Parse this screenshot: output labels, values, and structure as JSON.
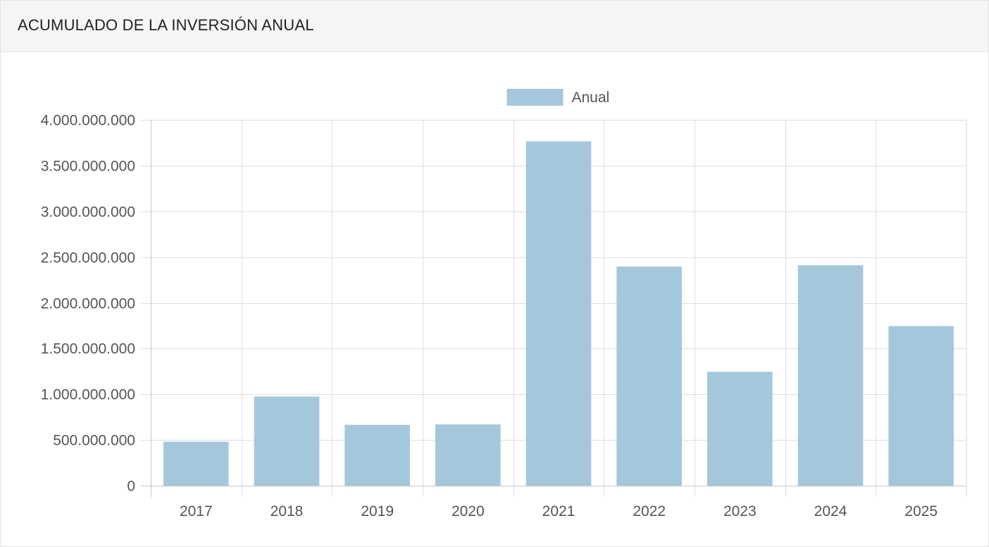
{
  "panel": {
    "title": "ACUMULADO DE LA INVERSIÓN ANUAL"
  },
  "colors": {
    "bar": "#a4c7dc",
    "grid": "#dedede",
    "axis": "#c8c8c8",
    "header_bg": "#f5f5f5"
  },
  "chart_data": {
    "type": "bar",
    "title": "ACUMULADO DE LA INVERSIÓN ANUAL",
    "xlabel": "",
    "ylabel": "",
    "legend": "top-center",
    "grid": true,
    "categories": [
      "2017",
      "2018",
      "2019",
      "2020",
      "2021",
      "2022",
      "2023",
      "2024",
      "2025"
    ],
    "series": [
      {
        "name": "Anual",
        "values": [
          480000000,
          975000000,
          665000000,
          670000000,
          3765000000,
          2395000000,
          1245000000,
          2410000000,
          1745000000
        ]
      }
    ],
    "ylim": [
      0,
      4000000000
    ],
    "yticks": [
      0,
      500000000,
      1000000000,
      1500000000,
      2000000000,
      2500000000,
      3000000000,
      3500000000,
      4000000000
    ],
    "ytick_labels": [
      "0",
      "500.000.000",
      "1.000.000.000",
      "1.500.000.000",
      "2.000.000.000",
      "2.500.000.000",
      "3.000.000.000",
      "3.500.000.000",
      "4.000.000.000"
    ]
  }
}
